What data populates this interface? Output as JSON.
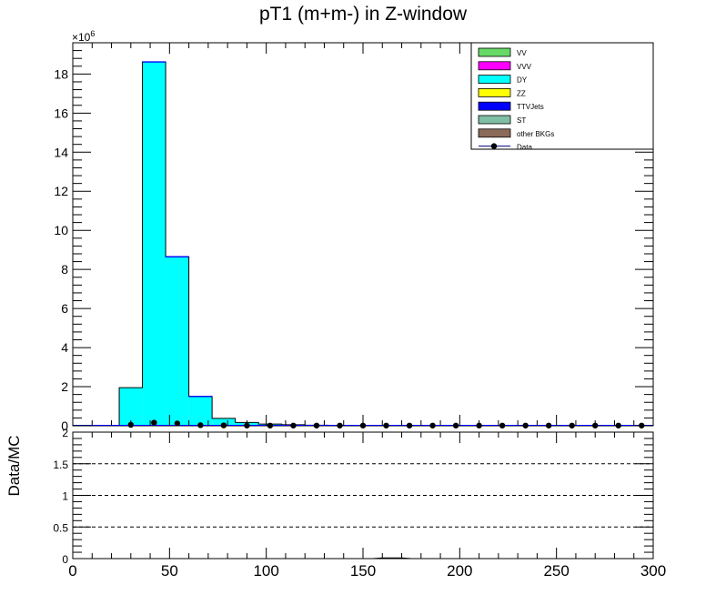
{
  "chart_data": [
    {
      "type": "bar",
      "panel": "main",
      "title": "pT1 (m+m-) in Z-window",
      "xlabel": "",
      "ylabel": "",
      "y_multiplier": "×10",
      "y_multiplier_exp": "6",
      "xlim": [
        0,
        300
      ],
      "ylim": [
        0,
        19.6
      ],
      "y_ticks": [
        0,
        2,
        4,
        6,
        8,
        10,
        12,
        14,
        16,
        18
      ],
      "y_tick_labels": [
        "0",
        "2",
        "4",
        "6",
        "8",
        "10",
        "12",
        "14",
        "16",
        "18"
      ],
      "bin_width": 12,
      "stacked": true,
      "legend_position": "top-right",
      "series": [
        {
          "name": "VV",
          "color": "#66d966",
          "values": []
        },
        {
          "name": "VVV",
          "color": "#ff00ff",
          "values": []
        },
        {
          "name": "DY",
          "color": "#00ffff",
          "edges": [
            24,
            36,
            48,
            60,
            72,
            84,
            96,
            108,
            120,
            132,
            144
          ],
          "values": [
            1.95,
            18.62,
            8.65,
            1.5,
            0.38,
            0.17,
            0.09,
            0.05,
            0.03,
            0.02
          ]
        },
        {
          "name": "ZZ",
          "color": "#ffff00",
          "values": []
        },
        {
          "name": "TTVJets",
          "color": "#0000ff",
          "values": []
        },
        {
          "name": "ST",
          "color": "#7fbfa5",
          "values": []
        },
        {
          "name": "other BKGs",
          "color": "#8c6a5a",
          "values": []
        },
        {
          "name": "Data",
          "color": "#000000",
          "marker": "circle",
          "x": [
            30,
            42,
            54,
            66,
            78,
            90,
            102,
            114,
            126,
            138,
            150,
            162,
            174,
            186,
            198,
            210,
            222,
            234,
            246,
            258,
            270,
            282,
            294
          ],
          "values": [
            0.05,
            0.16,
            0.12,
            0.03,
            0.02,
            0.01,
            0.01,
            0.01,
            0.01,
            0.01,
            0.01,
            0.01,
            0.01,
            0.01,
            0.01,
            0.01,
            0.01,
            0.01,
            0.01,
            0.01,
            0.01,
            0.01,
            0.01
          ]
        }
      ]
    },
    {
      "type": "line",
      "panel": "ratio",
      "ylabel": "Data/MC",
      "xlim": [
        0,
        300
      ],
      "ylim": [
        0,
        2
      ],
      "x_ticks": [
        0,
        50,
        100,
        150,
        200,
        250,
        300
      ],
      "x_tick_labels": [
        "0",
        "50",
        "100",
        "150",
        "200",
        "250",
        "300"
      ],
      "y_ticks": [
        0,
        0.5,
        1,
        1.5,
        2
      ],
      "y_tick_labels": [
        "0",
        "0.5",
        "1",
        "1.5",
        "2"
      ],
      "reference_lines": [
        0.5,
        1,
        1.5
      ],
      "series": [
        {
          "name": "",
          "x": [
            155,
            160,
            165,
            170,
            175
          ],
          "values": [
            0.0,
            0.01,
            0.01,
            0.01,
            0.0
          ]
        }
      ]
    }
  ]
}
